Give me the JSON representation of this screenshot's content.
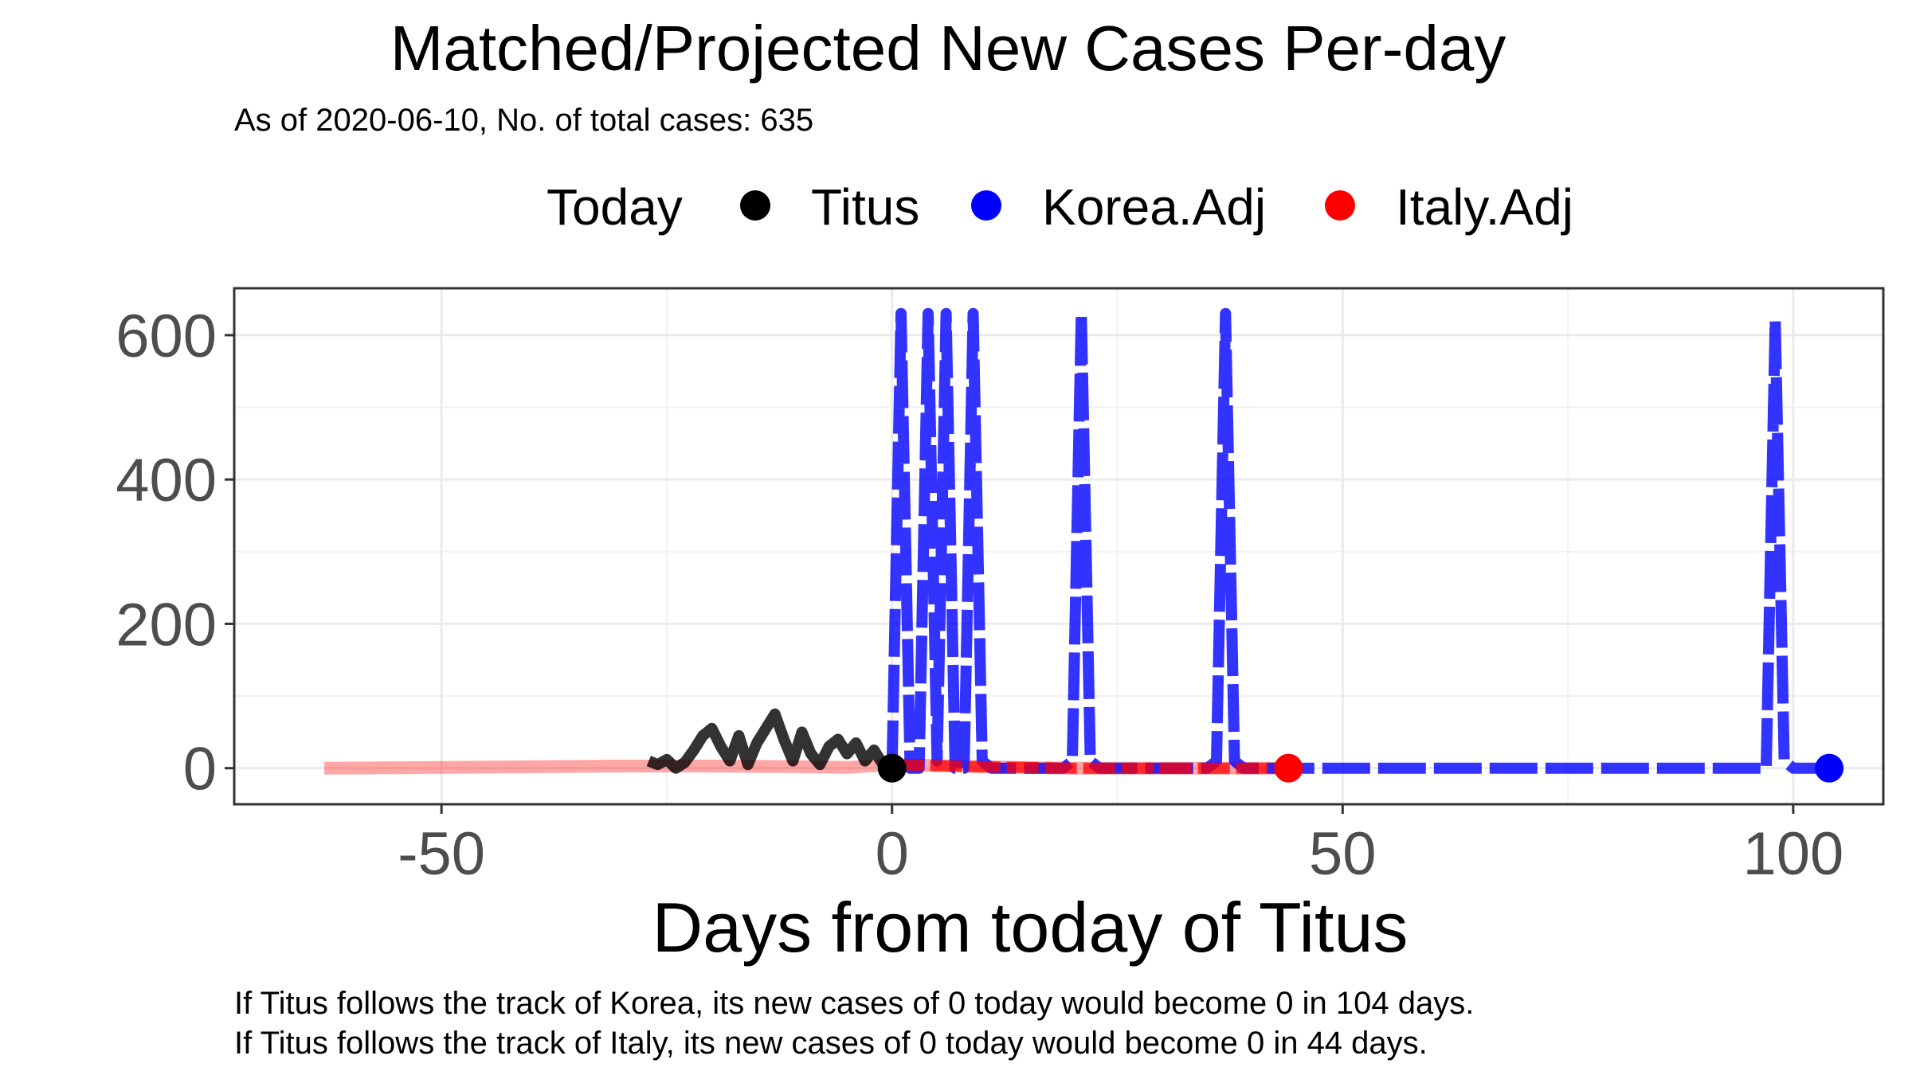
{
  "chart_data": {
    "type": "line",
    "title": "Matched/Projected New Cases Per-day",
    "subtitle": "As of 2020-06-10, No. of total cases: 635",
    "xlabel": "Days from today of Titus",
    "ylabel": "",
    "xlim": [
      -73,
      110
    ],
    "ylim": [
      -50,
      665
    ],
    "x_ticks": [
      -50,
      0,
      50,
      100
    ],
    "x_tick_labels": [
      "-50",
      "0",
      "50",
      "100"
    ],
    "y_ticks": [
      0,
      200,
      400,
      600
    ],
    "y_tick_labels": [
      "0",
      "200",
      "400",
      "600"
    ],
    "grid": true,
    "legend": {
      "title": "Today",
      "placement": "top",
      "entries": [
        {
          "label": "Titus",
          "color": "#000000"
        },
        {
          "label": "Korea.Adj",
          "color": "#0000ff"
        },
        {
          "label": "Italy.Adj",
          "color": "#ff0000"
        }
      ]
    },
    "series": [
      {
        "name": "Titus",
        "color": "#000000",
        "x": [
          -27,
          -26,
          -25,
          -24,
          -23,
          -22,
          -21,
          -20,
          -19,
          -18,
          -17,
          -16,
          -15,
          -14,
          -13,
          -12,
          -11,
          -10,
          -9,
          -8,
          -7,
          -6,
          -5,
          -4,
          -3,
          -2,
          -1,
          0
        ],
        "y": [
          10,
          5,
          12,
          0,
          8,
          25,
          45,
          55,
          30,
          10,
          45,
          5,
          35,
          55,
          75,
          40,
          10,
          50,
          20,
          5,
          30,
          40,
          20,
          35,
          10,
          25,
          5,
          0
        ]
      },
      {
        "name": "Korea.Adj",
        "color": "#0000ff",
        "x": [
          0,
          1,
          2,
          3,
          4,
          5,
          6,
          7,
          8,
          9,
          10,
          11,
          19,
          20,
          21,
          22,
          23,
          35,
          36,
          37,
          38,
          39,
          97,
          98,
          99,
          100,
          104
        ],
        "y": [
          0,
          630,
          0,
          0,
          630,
          10,
          630,
          0,
          0,
          630,
          10,
          0,
          0,
          10,
          630,
          10,
          0,
          0,
          10,
          630,
          10,
          0,
          0,
          620,
          10,
          0,
          0
        ]
      },
      {
        "name": "Italy.Adj",
        "color": "#ff0000",
        "x": [
          -63,
          -50,
          -40,
          -30,
          -20,
          -10,
          -5,
          0,
          10,
          20,
          30,
          40,
          44
        ],
        "y": [
          0,
          1,
          2,
          3,
          3,
          2,
          1,
          5,
          2,
          0,
          0,
          0,
          0
        ]
      }
    ],
    "points": [
      {
        "series": "Titus",
        "x": 0,
        "y": 0
      },
      {
        "series": "Italy.Adj",
        "x": 44,
        "y": 0
      },
      {
        "series": "Korea.Adj",
        "x": 104,
        "y": 0
      }
    ]
  },
  "caption": {
    "line1": "If Titus follows the track of Korea, its new cases of 0 today would become 0 in 104 days.",
    "line2": "If Titus follows the track of Italy, its new cases of 0 today would become 0 in 44 days."
  }
}
